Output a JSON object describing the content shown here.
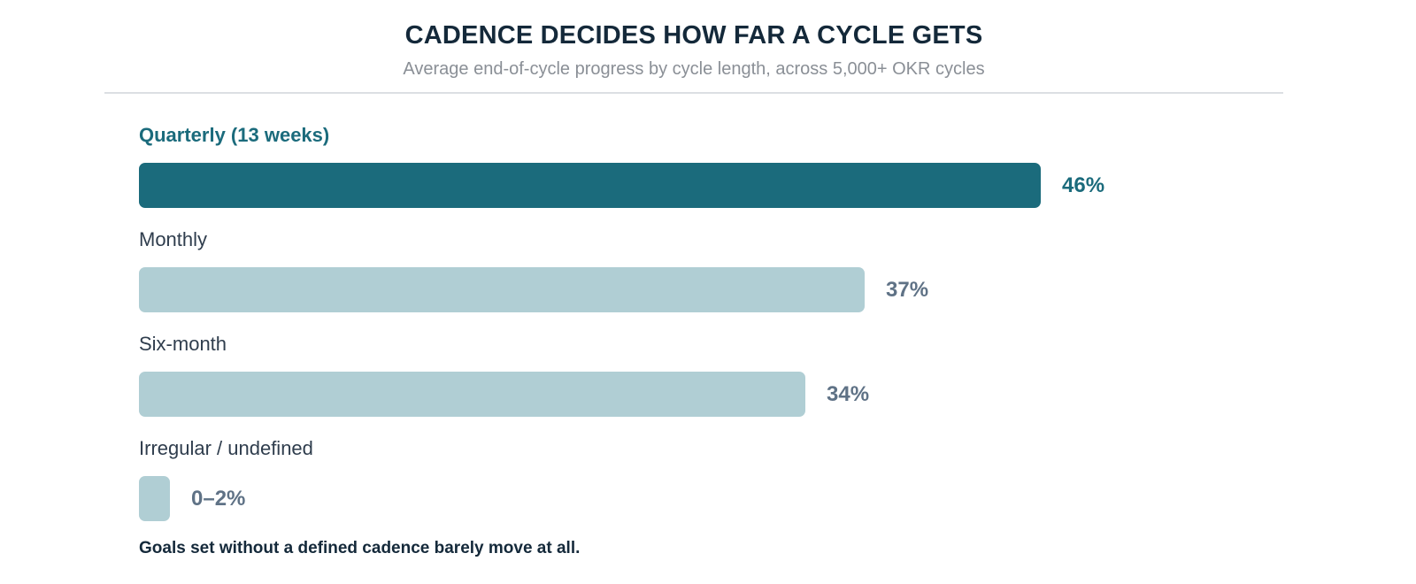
{
  "header": {
    "title": "CADENCE DECIDES HOW FAR A CYCLE GETS",
    "subtitle": "Average end-of-cycle progress by cycle length, across 5,000+ OKR cycles"
  },
  "chart_data": {
    "type": "bar",
    "orientation": "horizontal",
    "title": "CADENCE DECIDES HOW FAR A CYCLE GETS",
    "subtitle": "Average end-of-cycle progress by cycle length, across 5,000+ OKR cycles",
    "categories": [
      "Quarterly (13 weeks)",
      "Monthly",
      "Six-month",
      "Irregular / undefined"
    ],
    "values": [
      46,
      37,
      34,
      1
    ],
    "value_labels": [
      "46%",
      "37%",
      "34%",
      "0–2%"
    ],
    "highlight_index": 0,
    "unit": "%",
    "grid": false,
    "colors": {
      "highlight": "#1b6b7c",
      "default": "#b0ced4",
      "highlight_label": "#1b6b7c",
      "default_label": "#5f7286"
    },
    "annotation": "Goals set without a defined cadence barely move at all."
  },
  "footnote": "Goals set without a defined cadence barely move at all."
}
